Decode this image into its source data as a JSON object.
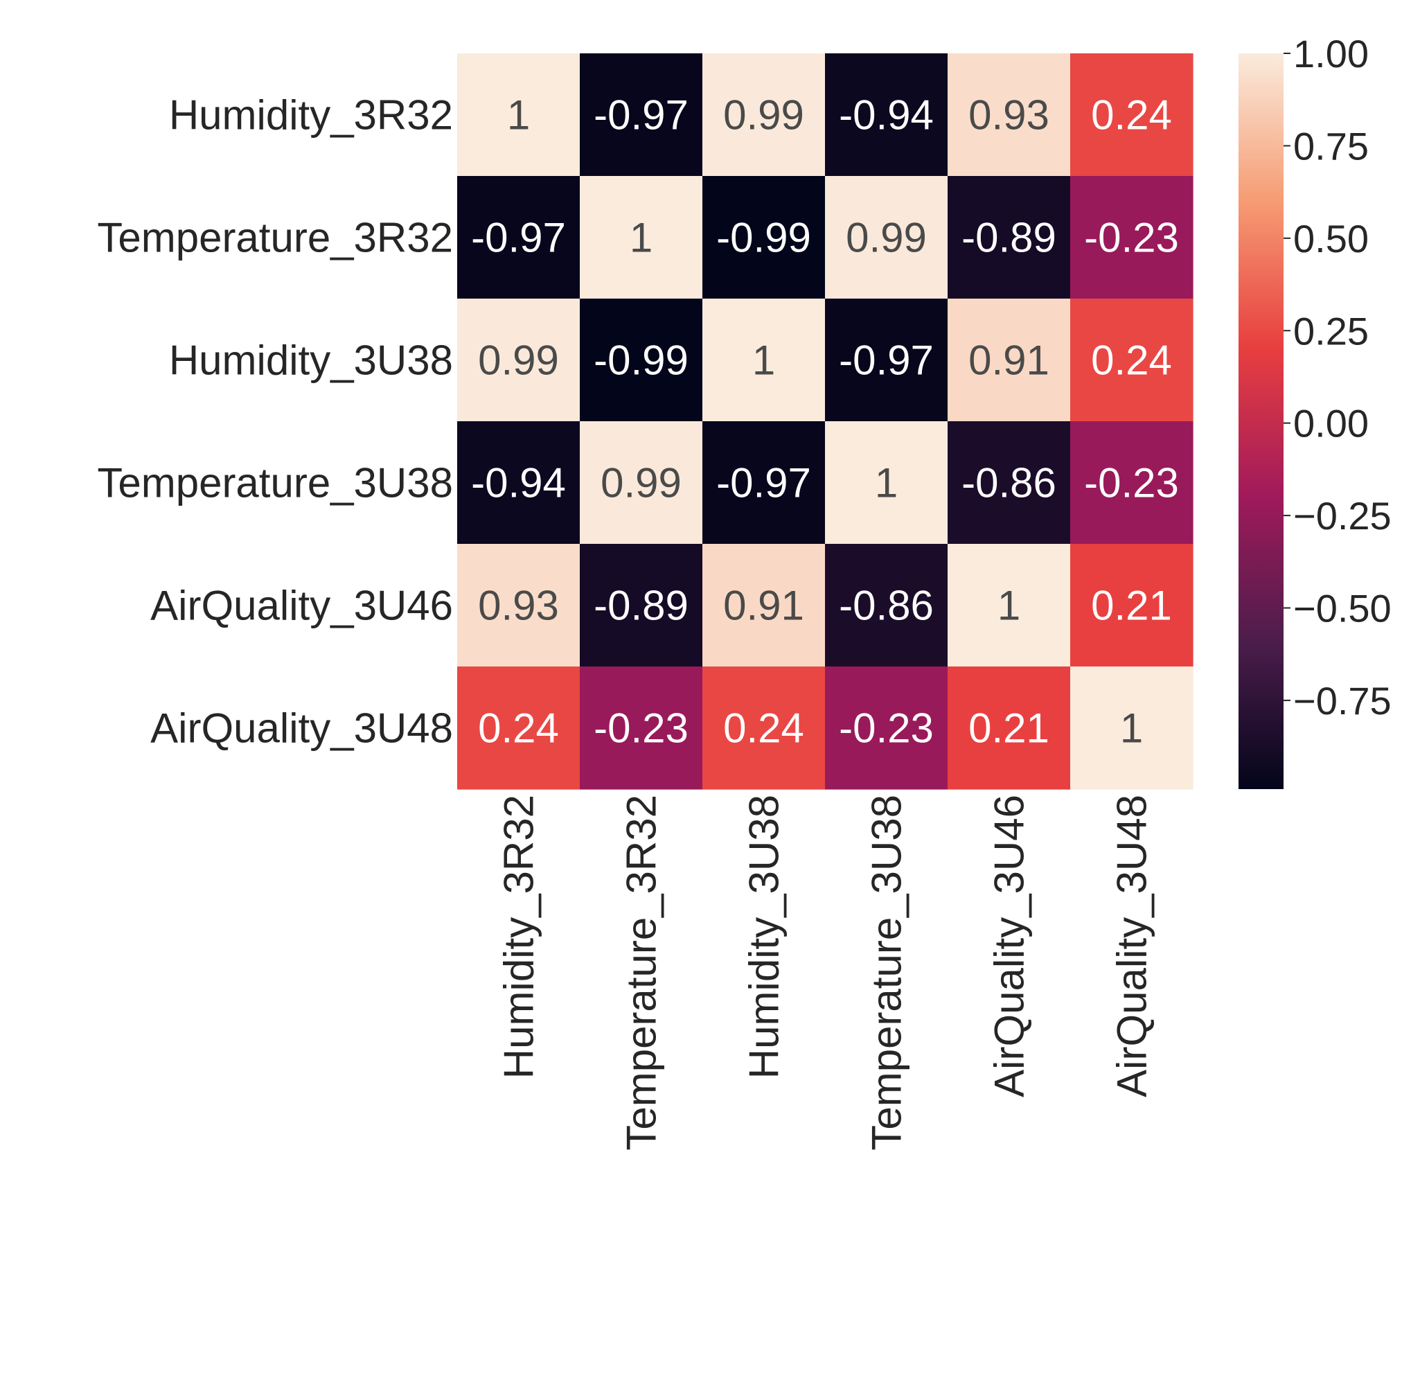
{
  "chart_data": {
    "type": "heatmap",
    "title": "",
    "xlabel": "",
    "ylabel": "",
    "row_labels": [
      "Humidity_3R32",
      "Temperature_3R32",
      "Humidity_3U38",
      "Temperature_3U38",
      "AirQuality_3U46",
      "AirQuality_3U48"
    ],
    "col_labels": [
      "Humidity_3R32",
      "Temperature_3R32",
      "Humidity_3U38",
      "Temperature_3U38",
      "AirQuality_3U46",
      "AirQuality_3U48"
    ],
    "values": [
      [
        1,
        -0.97,
        0.99,
        -0.94,
        0.93,
        0.24
      ],
      [
        -0.97,
        1,
        -0.99,
        0.99,
        -0.89,
        -0.23
      ],
      [
        0.99,
        -0.99,
        1,
        -0.97,
        0.91,
        0.24
      ],
      [
        -0.94,
        0.99,
        -0.97,
        1,
        -0.86,
        -0.23
      ],
      [
        0.93,
        -0.89,
        0.91,
        -0.86,
        1,
        0.21
      ],
      [
        0.24,
        -0.23,
        0.24,
        -0.23,
        0.21,
        1
      ]
    ],
    "annotations": [
      [
        "1",
        "-0.97",
        "0.99",
        "-0.94",
        "0.93",
        "0.24"
      ],
      [
        "-0.97",
        "1",
        "-0.99",
        "0.99",
        "-0.89",
        "-0.23"
      ],
      [
        "0.99",
        "-0.99",
        "1",
        "-0.97",
        "0.91",
        "0.24"
      ],
      [
        "-0.94",
        "0.99",
        "-0.97",
        "1",
        "-0.86",
        "-0.23"
      ],
      [
        "0.93",
        "-0.89",
        "0.91",
        "-0.86",
        "1",
        "0.21"
      ],
      [
        "0.24",
        "-0.23",
        "0.24",
        "-0.23",
        "0.21",
        "1"
      ]
    ],
    "colorbar": {
      "range": [
        -0.99,
        1.0
      ],
      "ticks": [
        1.0,
        0.75,
        0.5,
        0.25,
        0.0,
        -0.25,
        -0.5,
        -0.75
      ],
      "tick_labels": [
        "1.00",
        "0.75",
        "0.50",
        "0.25",
        "0.00",
        "−0.25",
        "−0.50",
        "−0.75"
      ],
      "colormap": "rocket",
      "stops": [
        "#03051a",
        "#4c1d4b",
        "#a11a5b",
        "#e83f3f",
        "#f69c73",
        "#faebdd"
      ]
    }
  }
}
